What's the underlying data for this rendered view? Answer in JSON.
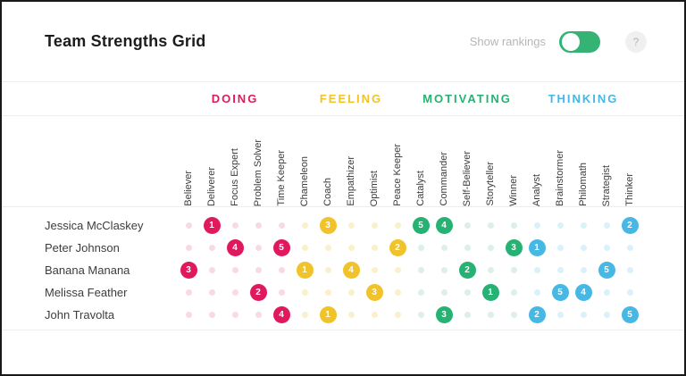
{
  "header": {
    "title": "Team Strengths Grid",
    "show_rankings_label": "Show rankings",
    "rankings_enabled": true,
    "toggle_color": "#35b375",
    "help_label": "?"
  },
  "grid": {
    "categories": [
      {
        "label": "DOING",
        "color": "#e0195e",
        "light": "#f8dae5",
        "columns": [
          "Believer",
          "Deliverer",
          "Focus Expert",
          "Problem Solver",
          "Time Keeper"
        ]
      },
      {
        "label": "FEELING",
        "color": "#f0c32a",
        "light": "#faf0cd",
        "columns": [
          "Chameleon",
          "Coach",
          "Empathizer",
          "Optimist",
          "Peace Keeper"
        ]
      },
      {
        "label": "MOTIVATING",
        "color": "#25b272",
        "light": "#ddefe6",
        "columns": [
          "Catalyst",
          "Commander",
          "Self-Believer",
          "Storyteller",
          "Winner"
        ]
      },
      {
        "label": "THINKING",
        "color": "#47b7e4",
        "light": "#dbf1fa",
        "columns": [
          "Analyst",
          "Brainstormer",
          "Philomath",
          "Strategist",
          "Thinker"
        ]
      }
    ],
    "people": [
      {
        "name": "Jessica McClaskey",
        "ranks": {
          "Deliverer": 1,
          "Coach": 3,
          "Catalyst": 5,
          "Commander": 4,
          "Thinker": 2
        }
      },
      {
        "name": "Peter Johnson",
        "ranks": {
          "Focus Expert": 4,
          "Time Keeper": 5,
          "Peace Keeper": 2,
          "Winner": 3,
          "Analyst": 1
        }
      },
      {
        "name": "Banana Manana",
        "ranks": {
          "Believer": 3,
          "Chameleon": 1,
          "Empathizer": 4,
          "Self-Believer": 2,
          "Strategist": 5
        }
      },
      {
        "name": "Melissa Feather",
        "ranks": {
          "Problem Solver": 2,
          "Optimist": 3,
          "Storyteller": 1,
          "Brainstormer": 5,
          "Philomath": 4
        }
      },
      {
        "name": "John Travolta",
        "ranks": {
          "Time Keeper": 4,
          "Coach": 1,
          "Commander": 3,
          "Analyst": 2,
          "Thinker": 5
        }
      }
    ]
  }
}
